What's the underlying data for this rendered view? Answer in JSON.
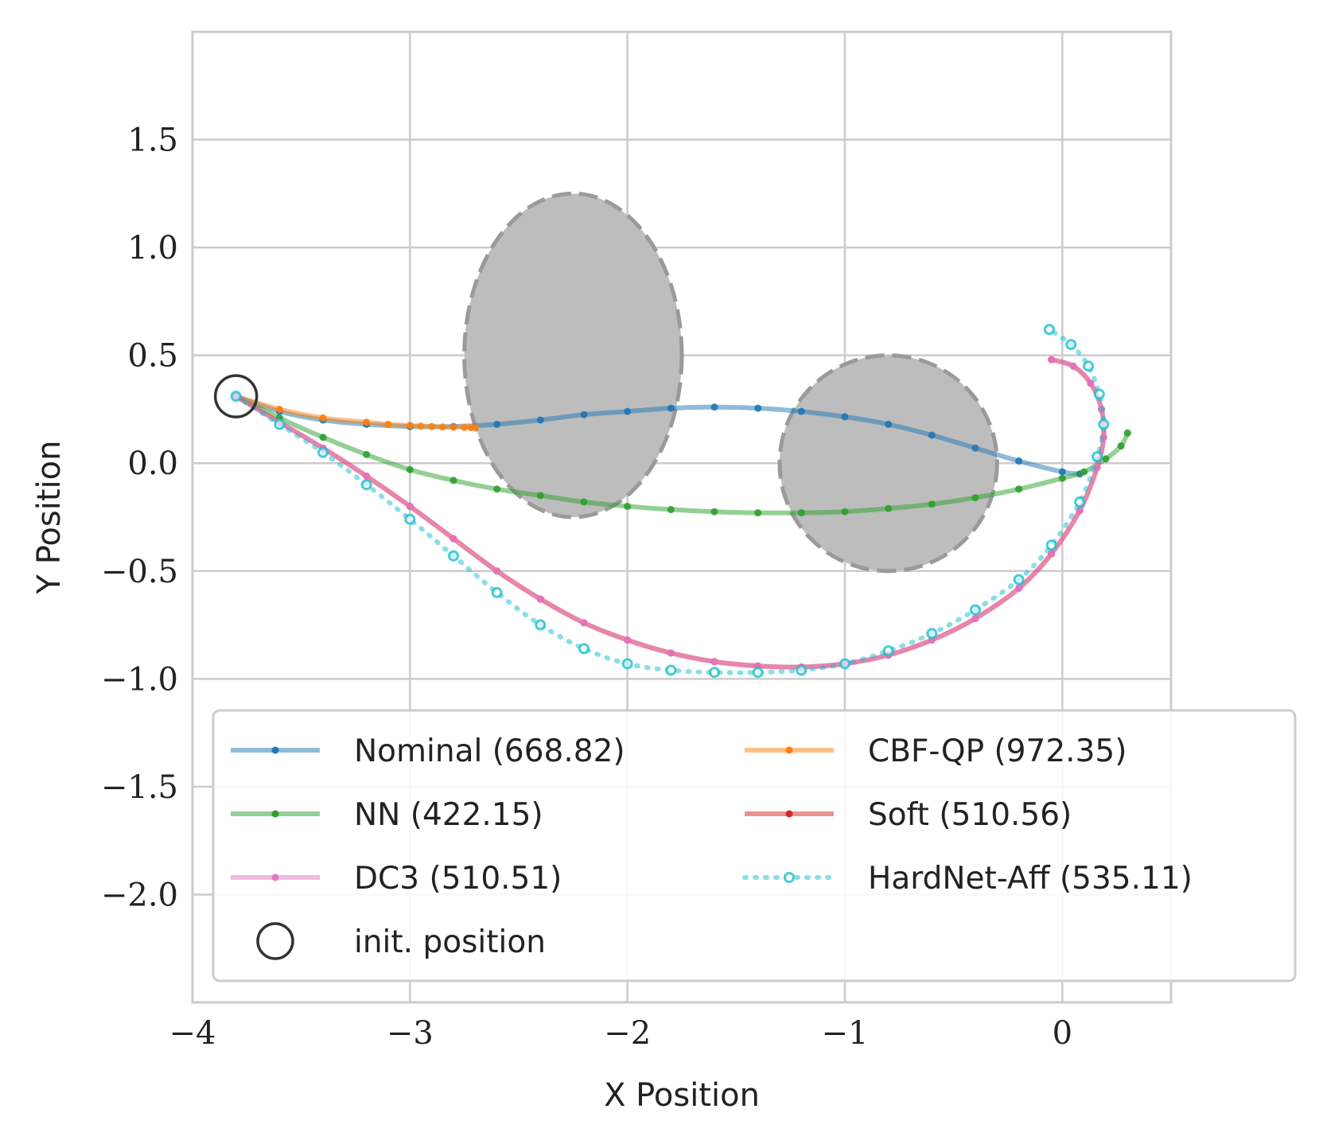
{
  "chart_data": {
    "type": "line",
    "title": "",
    "xlabel": "X Position",
    "ylabel": "Y Position",
    "xlim": [
      -4.0,
      0.5
    ],
    "ylim": [
      -2.5,
      2.0
    ],
    "xticks": [
      {
        "v": -4,
        "label": "−4"
      },
      {
        "v": -3,
        "label": "−3"
      },
      {
        "v": -2,
        "label": "−2"
      },
      {
        "v": -1,
        "label": "−1"
      },
      {
        "v": 0,
        "label": "0"
      }
    ],
    "yticks": [
      {
        "v": 1.5,
        "label": "1.5"
      },
      {
        "v": 1.0,
        "label": "1.0"
      },
      {
        "v": 0.5,
        "label": "0.5"
      },
      {
        "v": 0.0,
        "label": "0.0"
      },
      {
        "v": -0.5,
        "label": "−0.5"
      },
      {
        "v": -1.0,
        "label": "−1.0"
      },
      {
        "v": -1.5,
        "label": "−1.5"
      },
      {
        "v": -2.0,
        "label": "−2.0"
      }
    ],
    "grid": true,
    "legend_position": "lower-right",
    "obstacles": [
      {
        "cx": -2.25,
        "cy": 0.5,
        "rx": 0.5,
        "ry": 0.75
      },
      {
        "cx": -0.8,
        "cy": 0.0,
        "rx": 0.5,
        "ry": 0.5
      }
    ],
    "init_position": {
      "x": -3.8,
      "y": 0.31
    },
    "series": [
      {
        "name": "Nominal (668.82)",
        "color": "#1f77b4",
        "style": "solid",
        "x": [
          -3.8,
          -3.6,
          -3.4,
          -3.2,
          -3.0,
          -2.8,
          -2.6,
          -2.4,
          -2.2,
          -2.0,
          -1.8,
          -1.6,
          -1.4,
          -1.2,
          -1.0,
          -0.8,
          -0.6,
          -0.4,
          -0.2,
          0.0,
          0.08
        ],
        "y": [
          0.31,
          0.24,
          0.2,
          0.18,
          0.17,
          0.17,
          0.18,
          0.2,
          0.225,
          0.24,
          0.255,
          0.26,
          0.255,
          0.24,
          0.215,
          0.18,
          0.13,
          0.07,
          0.01,
          -0.04,
          -0.05
        ]
      },
      {
        "name": "NN (422.15)",
        "color": "#2ca02c",
        "style": "solid",
        "x": [
          -3.8,
          -3.6,
          -3.4,
          -3.2,
          -3.0,
          -2.8,
          -2.6,
          -2.4,
          -2.2,
          -2.0,
          -1.8,
          -1.6,
          -1.4,
          -1.2,
          -1.0,
          -0.8,
          -0.6,
          -0.4,
          -0.2,
          0.0,
          0.1,
          0.2,
          0.27,
          0.3
        ],
        "y": [
          0.31,
          0.21,
          0.12,
          0.04,
          -0.03,
          -0.08,
          -0.12,
          -0.15,
          -0.18,
          -0.2,
          -0.215,
          -0.225,
          -0.23,
          -0.23,
          -0.225,
          -0.21,
          -0.19,
          -0.16,
          -0.12,
          -0.07,
          -0.04,
          0.02,
          0.08,
          0.14
        ]
      },
      {
        "name": "CBF-QP (972.35)",
        "color": "#ff7f0e",
        "style": "solid",
        "x": [
          -3.8,
          -3.6,
          -3.4,
          -3.2,
          -3.1,
          -3.0,
          -2.95,
          -2.9,
          -2.85,
          -2.8,
          -2.75,
          -2.72,
          -2.7
        ],
        "y": [
          0.31,
          0.25,
          0.21,
          0.19,
          0.18,
          0.175,
          0.172,
          0.17,
          0.168,
          0.167,
          0.166,
          0.165,
          0.165
        ]
      },
      {
        "name": "Soft (510.56)",
        "color": "#d62728",
        "style": "solid",
        "x": [
          -3.8,
          -3.6,
          -3.4,
          -3.2,
          -3.0,
          -2.8,
          -2.6,
          -2.4,
          -2.2,
          -2.0,
          -1.8,
          -1.6,
          -1.4,
          -1.2,
          -1.0,
          -0.8,
          -0.6,
          -0.4,
          -0.2,
          -0.05,
          0.08,
          0.16,
          0.19,
          0.18,
          0.13,
          0.05,
          -0.05
        ],
        "y": [
          0.31,
          0.19,
          0.07,
          -0.06,
          -0.2,
          -0.35,
          -0.5,
          -0.63,
          -0.74,
          -0.82,
          -0.88,
          -0.92,
          -0.94,
          -0.945,
          -0.93,
          -0.89,
          -0.82,
          -0.72,
          -0.58,
          -0.42,
          -0.22,
          -0.02,
          0.12,
          0.25,
          0.37,
          0.45,
          0.48
        ]
      },
      {
        "name": "DC3 (510.51)",
        "color": "#e377c2",
        "style": "solid",
        "x": [
          -3.8,
          -3.6,
          -3.4,
          -3.2,
          -3.0,
          -2.8,
          -2.6,
          -2.4,
          -2.2,
          -2.0,
          -1.8,
          -1.6,
          -1.4,
          -1.2,
          -1.0,
          -0.8,
          -0.6,
          -0.4,
          -0.2,
          -0.05,
          0.08,
          0.16,
          0.19,
          0.18,
          0.13,
          0.05,
          -0.05
        ],
        "y": [
          0.31,
          0.19,
          0.07,
          -0.06,
          -0.2,
          -0.35,
          -0.5,
          -0.63,
          -0.74,
          -0.82,
          -0.88,
          -0.92,
          -0.94,
          -0.945,
          -0.93,
          -0.89,
          -0.82,
          -0.72,
          -0.58,
          -0.42,
          -0.22,
          -0.02,
          0.12,
          0.25,
          0.37,
          0.45,
          0.48
        ]
      },
      {
        "name": "HardNet-Aff (535.11)",
        "color": "#17becf",
        "style": "dotted",
        "x": [
          -3.8,
          -3.6,
          -3.4,
          -3.2,
          -3.0,
          -2.8,
          -2.6,
          -2.4,
          -2.2,
          -2.0,
          -1.8,
          -1.6,
          -1.4,
          -1.2,
          -1.0,
          -0.8,
          -0.6,
          -0.4,
          -0.2,
          -0.05,
          0.08,
          0.16,
          0.19,
          0.17,
          0.12,
          0.04,
          -0.06
        ],
        "y": [
          0.31,
          0.18,
          0.05,
          -0.1,
          -0.26,
          -0.43,
          -0.6,
          -0.75,
          -0.86,
          -0.93,
          -0.96,
          -0.97,
          -0.97,
          -0.96,
          -0.93,
          -0.87,
          -0.79,
          -0.68,
          -0.54,
          -0.38,
          -0.18,
          0.03,
          0.18,
          0.32,
          0.45,
          0.55,
          0.62
        ]
      }
    ],
    "legend": {
      "entries": [
        {
          "label": "Nominal (668.82)",
          "color": "#1f77b4",
          "style": "solid"
        },
        {
          "label": "CBF-QP (972.35)",
          "color": "#ff7f0e",
          "style": "solid"
        },
        {
          "label": "NN (422.15)",
          "color": "#2ca02c",
          "style": "solid"
        },
        {
          "label": "Soft (510.56)",
          "color": "#d62728",
          "style": "solid"
        },
        {
          "label": "DC3 (510.51)",
          "color": "#e377c2",
          "style": "solid"
        },
        {
          "label": "HardNet-Aff (535.11)",
          "color": "#17becf",
          "style": "dotted"
        },
        {
          "label": "init. position",
          "color": "#333333",
          "style": "circle"
        }
      ]
    }
  }
}
